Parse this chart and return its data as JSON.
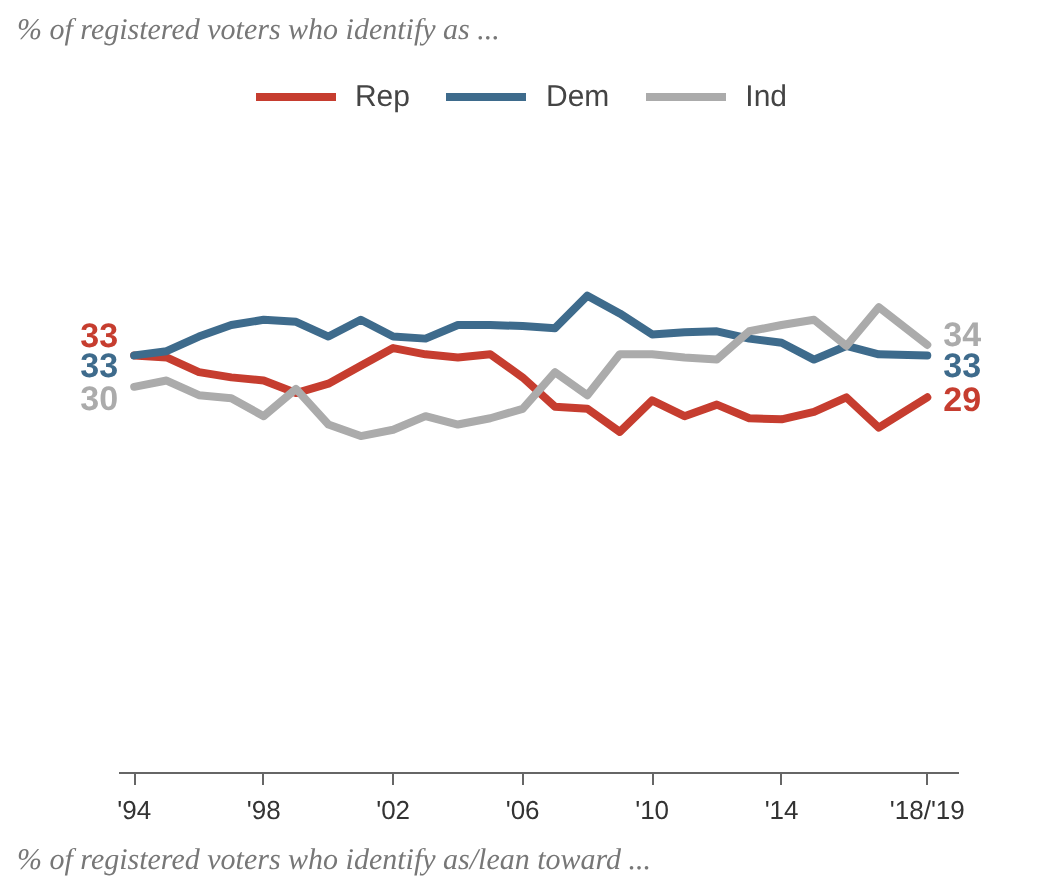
{
  "chart_data": {
    "type": "line",
    "title": "% of registered voters who identify as ...",
    "x": [
      1994,
      1995,
      1996,
      1997,
      1998,
      1999,
      2000,
      2001,
      2002,
      2003,
      2004,
      2005,
      2006,
      2007,
      2008,
      2009,
      2010,
      2011,
      2012,
      2013,
      2014,
      2015,
      2016,
      2017,
      2018.5
    ],
    "series": [
      {
        "name": "Rep",
        "color": "#c63d2f",
        "values": [
          33,
          32.8,
          31.4,
          30.9,
          30.6,
          29.4,
          30.3,
          32,
          33.7,
          33.1,
          32.8,
          33.1,
          30.9,
          28.1,
          27.9,
          25.7,
          28.7,
          27.2,
          28.3,
          27,
          26.9,
          27.6,
          29,
          26.1,
          29
        ],
        "value_labels": [
          "33",
          null,
          null,
          null,
          null,
          null,
          null,
          null,
          null,
          null,
          null,
          null,
          null,
          null,
          null,
          null,
          null,
          null,
          null,
          null,
          null,
          null,
          null,
          null,
          "29"
        ]
      },
      {
        "name": "Dem",
        "color": "#3e6b8c",
        "values": [
          33,
          33.4,
          34.8,
          35.9,
          36.4,
          36.2,
          34.8,
          36.4,
          34.8,
          34.6,
          35.9,
          35.9,
          35.8,
          35.6,
          38.7,
          37,
          35,
          35.2,
          35.3,
          34.6,
          34.2,
          32.6,
          33.9,
          33.1,
          33
        ],
        "value_labels": [
          "33",
          null,
          null,
          null,
          null,
          null,
          null,
          null,
          null,
          null,
          null,
          null,
          null,
          null,
          null,
          null,
          null,
          null,
          null,
          null,
          null,
          null,
          null,
          null,
          "33"
        ]
      },
      {
        "name": "Ind",
        "color": "#ababab",
        "values": [
          30,
          30.6,
          29.2,
          28.9,
          27.2,
          29.8,
          26.4,
          25.3,
          25.9,
          27.2,
          26.4,
          27,
          27.9,
          31.4,
          29.2,
          33.1,
          33.1,
          32.8,
          32.6,
          35.3,
          35.9,
          36.4,
          33.9,
          37.6,
          34
        ],
        "value_labels": [
          "30",
          null,
          null,
          null,
          null,
          null,
          null,
          null,
          null,
          null,
          null,
          null,
          null,
          null,
          null,
          null,
          null,
          null,
          null,
          null,
          null,
          null,
          null,
          null,
          "34"
        ]
      }
    ],
    "xlim": [
      1993.5,
      2019.5
    ],
    "xticks": [
      {
        "value": 1994,
        "label": "'94"
      },
      {
        "value": 1998,
        "label": "'98"
      },
      {
        "value": 2002,
        "label": "'02"
      },
      {
        "value": 2006,
        "label": "'06"
      },
      {
        "value": 2010,
        "label": "'10"
      },
      {
        "value": 2014,
        "label": "'14"
      },
      {
        "value": 2018.5,
        "label": "'18/'19"
      }
    ],
    "tick_labels": "x",
    "grid": false,
    "legend": "top",
    "marker": "none",
    "line_style": "solid",
    "annotations": [
      "% of registered voters who identify as/lean toward ..."
    ]
  }
}
